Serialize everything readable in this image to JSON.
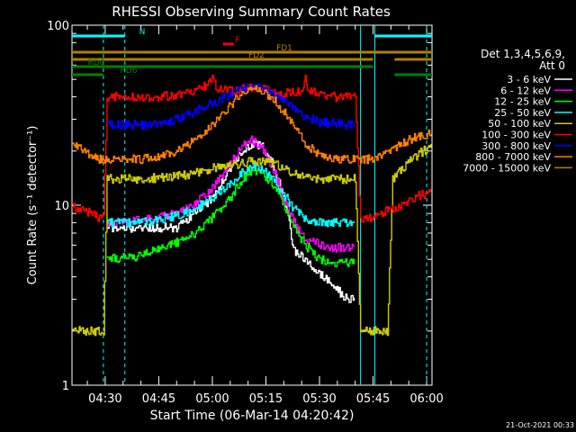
{
  "chart_data": {
    "type": "line",
    "title": "RHESSI Observing Summary Count Rates",
    "xlabel": "Start Time (06-Mar-14 04:20:42)",
    "ylabel": "Count Rate (s⁻¹ detector⁻¹)",
    "y_scale": "log",
    "ylim": [
      1,
      100
    ],
    "xlim_minutes": [
      260.7,
      361.5
    ],
    "y_ticks": [
      {
        "value": 1,
        "label": "1"
      },
      {
        "value": 10,
        "label": "10"
      },
      {
        "value": 100,
        "label": "100"
      }
    ],
    "x_ticks": [
      {
        "minute": 270,
        "label": "04:30"
      },
      {
        "minute": 285,
        "label": "04:45"
      },
      {
        "minute": 300,
        "label": "05:00"
      },
      {
        "minute": 315,
        "label": "05:15"
      },
      {
        "minute": 330,
        "label": "05:30"
      },
      {
        "minute": 345,
        "label": "05:45"
      },
      {
        "minute": 360,
        "label": "06:00"
      }
    ],
    "legend_header": "Det 1,3,4,5,6,9,",
    "legend_sub": "Att 0",
    "legend_position": "right",
    "series": [
      {
        "name": "3 - 6 keV",
        "color": "#ffffff",
        "points": [
          [
            260.7,
            null
          ],
          [
            269.0,
            null
          ],
          [
            270.5,
            7.5
          ],
          [
            280,
            7.5
          ],
          [
            285,
            7.5
          ],
          [
            290,
            7.5
          ],
          [
            295,
            9.0
          ],
          [
            300,
            11
          ],
          [
            305,
            16
          ],
          [
            308,
            20
          ],
          [
            311,
            22
          ],
          [
            314,
            21
          ],
          [
            317,
            17
          ],
          [
            320,
            11
          ],
          [
            323,
            5.5
          ],
          [
            326,
            5.0
          ],
          [
            330,
            4.2
          ],
          [
            334,
            3.5
          ],
          [
            338,
            3.0
          ],
          [
            340,
            3.0
          ],
          [
            341.5,
            null
          ],
          [
            361.5,
            null
          ]
        ]
      },
      {
        "name": "6 - 12 keV",
        "color": "#ff00ff",
        "points": [
          [
            260.7,
            null
          ],
          [
            269.0,
            null
          ],
          [
            270.5,
            8.0
          ],
          [
            280,
            8.2
          ],
          [
            285,
            8.5
          ],
          [
            290,
            9
          ],
          [
            295,
            10
          ],
          [
            300,
            12.5
          ],
          [
            305,
            17
          ],
          [
            308,
            21
          ],
          [
            311,
            23
          ],
          [
            314,
            21
          ],
          [
            317,
            16
          ],
          [
            320,
            11
          ],
          [
            323,
            8
          ],
          [
            326,
            6.5
          ],
          [
            330,
            6.0
          ],
          [
            334,
            5.8
          ],
          [
            338,
            5.8
          ],
          [
            340,
            5.8
          ],
          [
            341.5,
            null
          ],
          [
            361.5,
            null
          ]
        ]
      },
      {
        "name": "12 - 25 keV",
        "color": "#00ff00",
        "points": [
          [
            260.7,
            null
          ],
          [
            269.0,
            null
          ],
          [
            270.5,
            5.0
          ],
          [
            280,
            5.2
          ],
          [
            285,
            5.8
          ],
          [
            290,
            6.2
          ],
          [
            295,
            7.0
          ],
          [
            300,
            8.5
          ],
          [
            305,
            11
          ],
          [
            308,
            13.5
          ],
          [
            311,
            15.5
          ],
          [
            314,
            15
          ],
          [
            317,
            13
          ],
          [
            320,
            10
          ],
          [
            323,
            7.5
          ],
          [
            326,
            6.0
          ],
          [
            330,
            5.0
          ],
          [
            334,
            4.8
          ],
          [
            338,
            4.8
          ],
          [
            340,
            4.8
          ],
          [
            341.5,
            null
          ],
          [
            361.5,
            null
          ]
        ]
      },
      {
        "name": "25 - 50 keV",
        "color": "#00ffff",
        "points": [
          [
            260.7,
            null
          ],
          [
            269.0,
            null
          ],
          [
            270.5,
            8.0
          ],
          [
            280,
            8.0
          ],
          [
            285,
            8.3
          ],
          [
            290,
            8.7
          ],
          [
            295,
            9.5
          ],
          [
            300,
            11
          ],
          [
            305,
            13
          ],
          [
            308,
            15
          ],
          [
            311,
            16.5
          ],
          [
            314,
            16
          ],
          [
            317,
            14
          ],
          [
            320,
            11.5
          ],
          [
            323,
            9.5
          ],
          [
            326,
            8.3
          ],
          [
            330,
            8.0
          ],
          [
            334,
            8.0
          ],
          [
            338,
            8.0
          ],
          [
            340,
            8.0
          ],
          [
            341.5,
            null
          ],
          [
            361.5,
            null
          ]
        ]
      },
      {
        "name": "50 - 100 keV",
        "color": "#cccc00",
        "points": [
          [
            260.7,
            2.0
          ],
          [
            263,
            2.0
          ],
          [
            266,
            2.0
          ],
          [
            268,
            2.0
          ],
          [
            269.5,
            2.0
          ],
          [
            270.5,
            14
          ],
          [
            280,
            14
          ],
          [
            285,
            14.2
          ],
          [
            290,
            14.5
          ],
          [
            295,
            15
          ],
          [
            300,
            16
          ],
          [
            305,
            16.5
          ],
          [
            308,
            17
          ],
          [
            311,
            17.5
          ],
          [
            314,
            17.5
          ],
          [
            317,
            17
          ],
          [
            320,
            16
          ],
          [
            323,
            15
          ],
          [
            326,
            14.5
          ],
          [
            330,
            14
          ],
          [
            334,
            14
          ],
          [
            338,
            14
          ],
          [
            340,
            14
          ],
          [
            341.5,
            2.0
          ],
          [
            344,
            2.0
          ],
          [
            347,
            2.0
          ],
          [
            349,
            2.0
          ],
          [
            350.5,
            14
          ],
          [
            353,
            16
          ],
          [
            356,
            18
          ],
          [
            359,
            20
          ],
          [
            361.5,
            21
          ]
        ]
      },
      {
        "name": "100 - 300 keV",
        "color": "#ff0000",
        "points": [
          [
            260.7,
            10
          ],
          [
            263,
            9.5
          ],
          [
            266,
            9.0
          ],
          [
            268,
            8.5
          ],
          [
            269.5,
            8.5
          ],
          [
            270.5,
            40
          ],
          [
            280,
            40
          ],
          [
            285,
            40
          ],
          [
            290,
            41
          ],
          [
            295,
            43
          ],
          [
            299.5,
            48
          ],
          [
            300,
            55
          ],
          [
            301,
            45
          ],
          [
            305,
            43
          ],
          [
            308,
            44
          ],
          [
            311,
            45
          ],
          [
            314,
            44
          ],
          [
            317,
            43
          ],
          [
            320,
            42
          ],
          [
            323,
            42
          ],
          [
            325.5,
            43
          ],
          [
            326,
            50
          ],
          [
            327,
            44
          ],
          [
            330,
            41
          ],
          [
            334,
            40
          ],
          [
            338,
            40
          ],
          [
            340,
            40
          ],
          [
            341.5,
            8.5
          ],
          [
            344,
            8.5
          ],
          [
            347,
            9.0
          ],
          [
            350,
            9.5
          ],
          [
            353,
            10
          ],
          [
            356,
            11
          ],
          [
            359,
            11.5
          ],
          [
            361.5,
            12
          ]
        ]
      },
      {
        "name": "300 - 800 keV",
        "color": "#0000ff",
        "points": [
          [
            260.7,
            null
          ],
          [
            269.0,
            null
          ],
          [
            270.5,
            28
          ],
          [
            280,
            28
          ],
          [
            285,
            28.5
          ],
          [
            290,
            30
          ],
          [
            295,
            33
          ],
          [
            300,
            37
          ],
          [
            305,
            41
          ],
          [
            308,
            44
          ],
          [
            311,
            46
          ],
          [
            314,
            45
          ],
          [
            317,
            42
          ],
          [
            320,
            38
          ],
          [
            323,
            34
          ],
          [
            326,
            31
          ],
          [
            330,
            29
          ],
          [
            334,
            28.5
          ],
          [
            338,
            28
          ],
          [
            340,
            28
          ],
          [
            341.5,
            null
          ],
          [
            361.5,
            null
          ]
        ]
      },
      {
        "name": "800 - 7000 keV",
        "color": "#ff8000",
        "points": [
          [
            260.7,
            22
          ],
          [
            263,
            21
          ],
          [
            266,
            19
          ],
          [
            268,
            18
          ],
          [
            269.5,
            18
          ],
          [
            270.5,
            18
          ],
          [
            280,
            18
          ],
          [
            285,
            18.5
          ],
          [
            290,
            20
          ],
          [
            295,
            23
          ],
          [
            300,
            28
          ],
          [
            305,
            36
          ],
          [
            308,
            41
          ],
          [
            311,
            44
          ],
          [
            314,
            43
          ],
          [
            317,
            39
          ],
          [
            320,
            33
          ],
          [
            323,
            27
          ],
          [
            326,
            22
          ],
          [
            330,
            19
          ],
          [
            334,
            18
          ],
          [
            338,
            18
          ],
          [
            340,
            18
          ],
          [
            341.5,
            18
          ],
          [
            344,
            18
          ],
          [
            347,
            19
          ],
          [
            350,
            20
          ],
          [
            353,
            22
          ],
          [
            356,
            23.5
          ],
          [
            359,
            24.5
          ],
          [
            361.5,
            25
          ]
        ]
      },
      {
        "name": "7000 - 15000 keV",
        "color": "#b08000",
        "points": [
          [
            260.7,
            null
          ],
          [
            361.5,
            null
          ]
        ]
      }
    ],
    "attenuator_bars": [
      {
        "label": "N",
        "color": "#00ffff",
        "row": 1,
        "segments": [
          [
            260.7,
            275.5
          ],
          [
            345.5,
            361.5
          ]
        ]
      },
      {
        "label": "F",
        "color": "#ff0000",
        "row": 2,
        "segments": [
          [
            303,
            306
          ]
        ]
      },
      {
        "label": "FD1",
        "color": "#b08000",
        "row": 3,
        "segments": [
          [
            260.7,
            361.5
          ]
        ]
      },
      {
        "label": "FD2",
        "color": "#b08000",
        "row": 4,
        "segments": [
          [
            260.7,
            345
          ],
          [
            351,
            361.5
          ]
        ]
      },
      {
        "label": "RD0",
        "color": "#008000",
        "row": 5,
        "segments": [
          [
            260.7,
            345
          ]
        ]
      },
      {
        "label": "RD6",
        "color": "#008000",
        "row": 6,
        "segments": [
          [
            260.7,
            269.5
          ],
          [
            351,
            361.5
          ]
        ]
      }
    ],
    "vertical_lines": [
      {
        "minute": 269.5,
        "color": "#00ffff",
        "style": "dashed"
      },
      {
        "minute": 275.5,
        "color": "#00ffff",
        "style": "dashed"
      },
      {
        "minute": 341.5,
        "color": "#00ffff",
        "style": "solid"
      },
      {
        "minute": 345.5,
        "color": "#00ffff",
        "style": "solid"
      },
      {
        "minute": 360,
        "color": "#00ffff",
        "style": "dashed"
      }
    ],
    "footer_date": "21-Oct-2021 00:33"
  }
}
